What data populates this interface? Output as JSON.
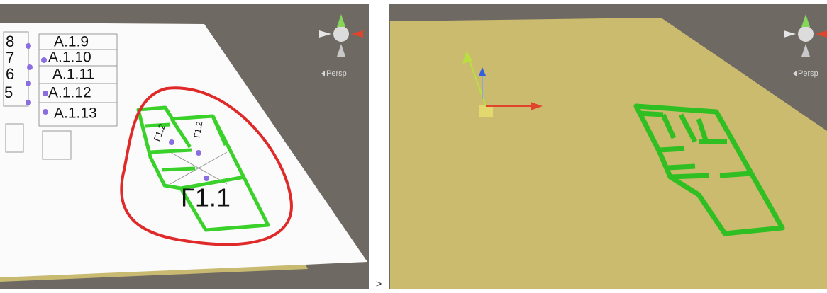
{
  "left_view": {
    "row_numbers": [
      "8",
      "7",
      "6",
      "5"
    ],
    "room_labels": [
      "A.1.9",
      "A.1.10",
      "A.1.11",
      "A.1.12",
      "A.1.13"
    ],
    "floor_labels": [
      "Γ1.1",
      "Γ1.2",
      "Γ1.2"
    ],
    "camera": "Persp"
  },
  "right_view": {
    "camera": "Persp"
  },
  "separator": ">"
}
